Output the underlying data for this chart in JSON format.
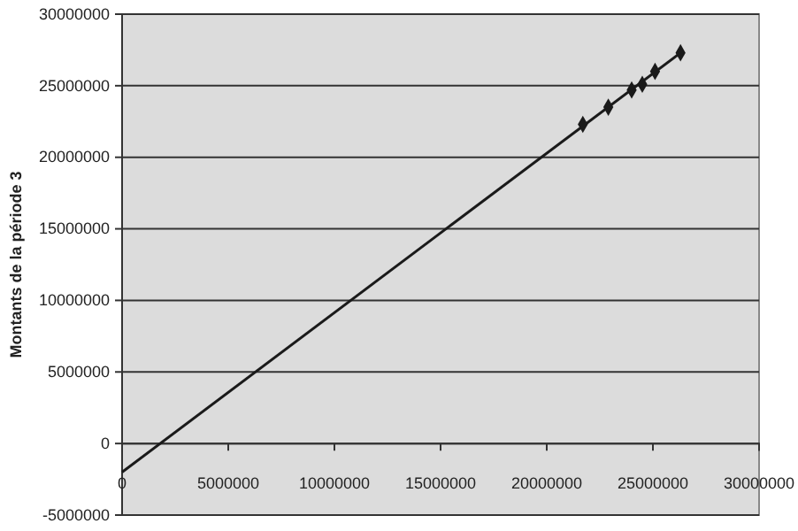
{
  "chart_data": {
    "type": "scatter",
    "ylabel": "Montants de la période 3",
    "xlim": [
      0,
      30000000
    ],
    "xticks": [
      0,
      5000000,
      10000000,
      15000000,
      20000000,
      25000000,
      30000000
    ],
    "ylim": [
      -5000000,
      30000000
    ],
    "yticks": [
      -5000000,
      0,
      5000000,
      10000000,
      15000000,
      20000000,
      25000000,
      30000000
    ],
    "grid": "y",
    "series": [
      {
        "type": "line",
        "color": "#1a1a1a",
        "marker": "none",
        "x": [
          0,
          26300000
        ],
        "values": [
          -2000000,
          27300000
        ]
      },
      {
        "type": "scatter",
        "color": "#1a1a1a",
        "marker": "diamond",
        "x": [
          21700000,
          22900000,
          24000000,
          24500000,
          25100000,
          26300000
        ],
        "values": [
          22300000,
          23500000,
          24700000,
          25100000,
          26000000,
          27300000
        ]
      }
    ]
  }
}
